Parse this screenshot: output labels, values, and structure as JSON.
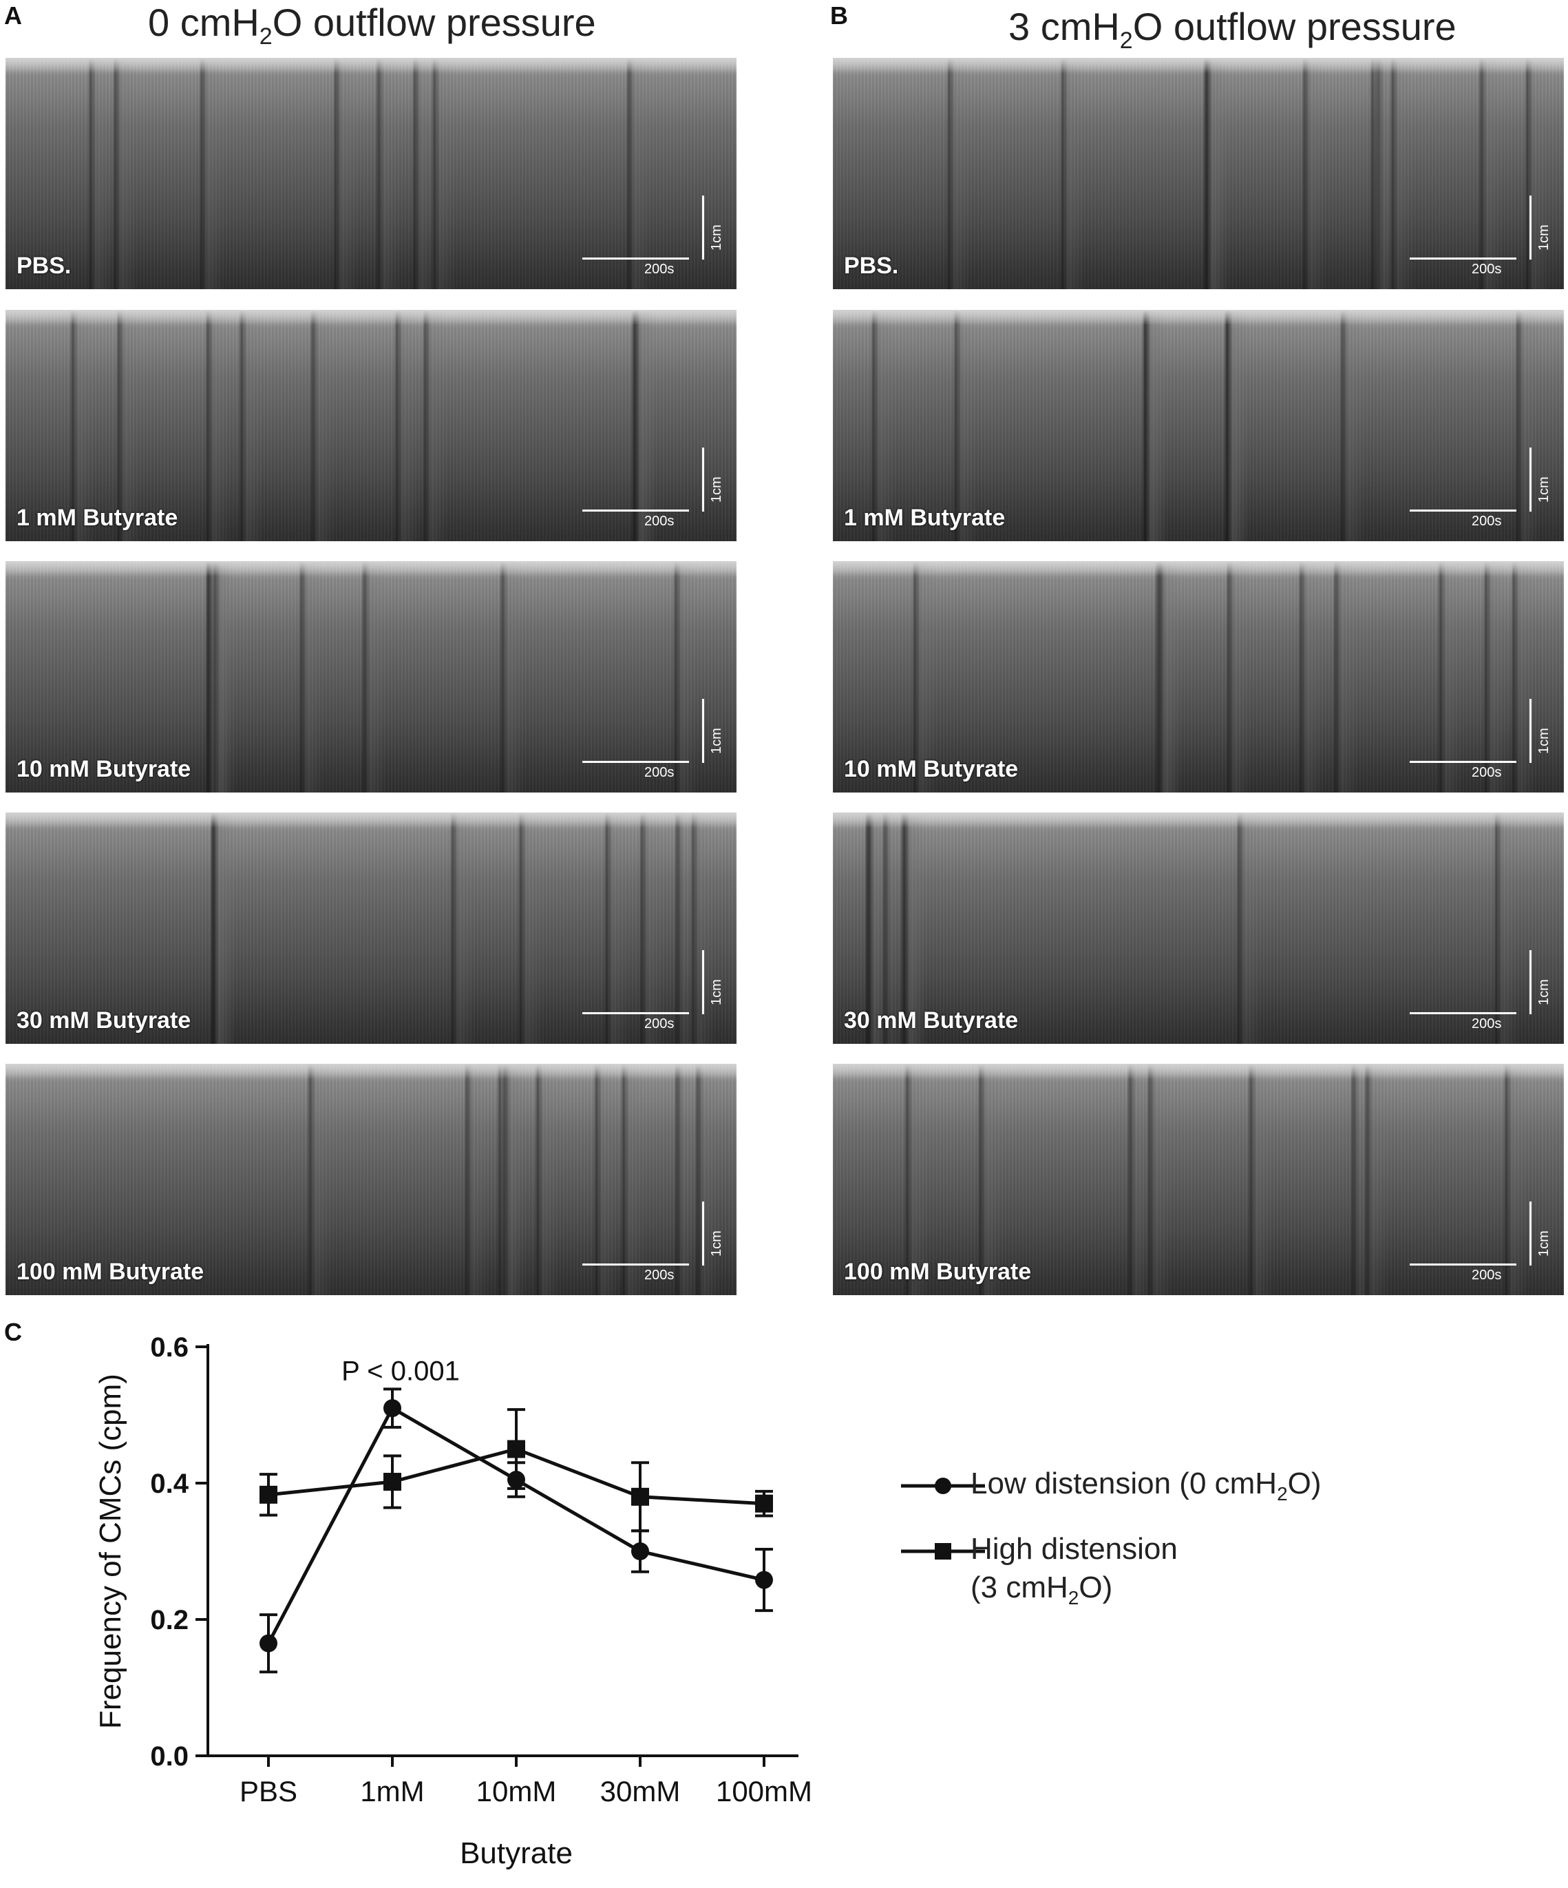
{
  "panels": {
    "a_letter": "A",
    "b_letter": "B",
    "c_letter": "C"
  },
  "titles": {
    "a_pre": "0 cmH",
    "a_sub": "2",
    "a_post": "O outflow pressure",
    "b_pre": "3 cmH",
    "b_sub": "2",
    "b_post": "O outflow pressure"
  },
  "kymographs": {
    "col_a": [
      {
        "label": "PBS."
      },
      {
        "label": "1 mM Butyrate"
      },
      {
        "label": "10 mM Butyrate"
      },
      {
        "label": "30 mM Butyrate"
      },
      {
        "label": "100 mM Butyrate"
      }
    ],
    "col_b": [
      {
        "label": "PBS."
      },
      {
        "label": "1 mM Butyrate"
      },
      {
        "label": "10 mM Butyrate"
      },
      {
        "label": "30 mM Butyrate"
      },
      {
        "label": "100 mM Butyrate"
      }
    ],
    "scale_time": "200s",
    "scale_length": "1cm"
  },
  "legend": {
    "low_pre": "Low distension (0 cmH",
    "low_sub": "2",
    "low_post": "O)",
    "high_line1": "High distension",
    "high_line2_pre": "(3 cmH",
    "high_line2_sub": "2",
    "high_line2_post": "O)"
  },
  "chart_data": {
    "type": "line",
    "categories": [
      "PBS",
      "1mM",
      "10mM",
      "30mM",
      "100mM"
    ],
    "xlabel": "Butyrate",
    "ylabel": "Frequency of CMCs (cpm)",
    "ylim": [
      0,
      0.6
    ],
    "yticks": [
      "0.0",
      "0.2",
      "0.4",
      "0.6"
    ],
    "annotation": "P < 0.001",
    "series": [
      {
        "name": "Low distension (0 cmH2O)",
        "marker": "circle",
        "values": [
          0.165,
          0.51,
          0.405,
          0.3,
          0.258
        ],
        "errors": [
          0.042,
          0.028,
          0.025,
          0.03,
          0.045
        ]
      },
      {
        "name": "High distension (3 cmH2O)",
        "marker": "square",
        "values": [
          0.383,
          0.402,
          0.45,
          0.38,
          0.37
        ],
        "errors": [
          0.03,
          0.038,
          0.058,
          0.05,
          0.018
        ]
      }
    ],
    "colors": {
      "line": "#111111"
    }
  }
}
